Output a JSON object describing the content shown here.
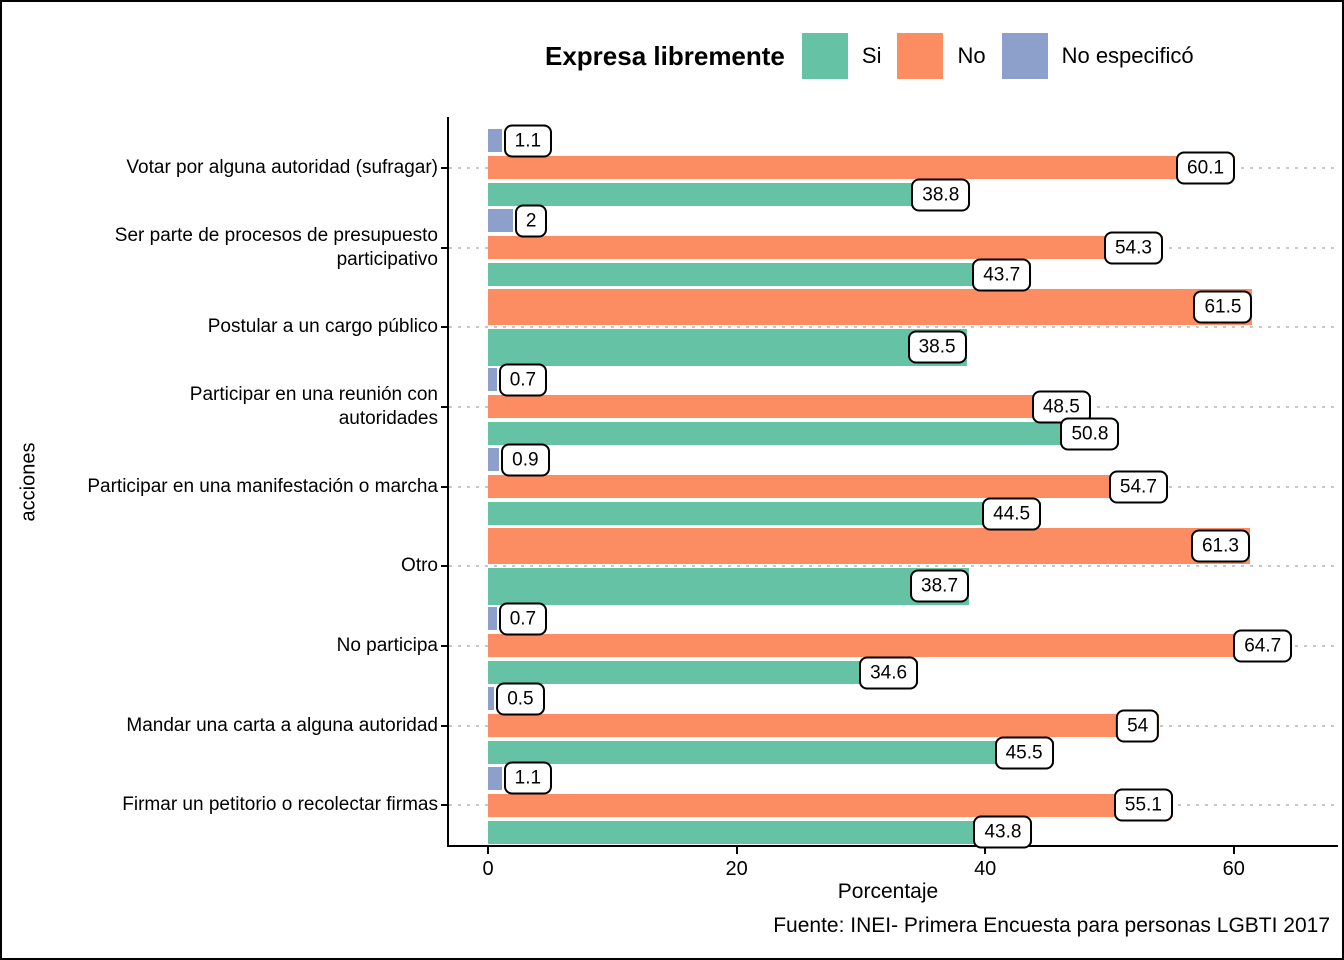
{
  "legend": {
    "title": "Expresa libremente",
    "items": [
      {
        "label": "Si",
        "color": "#66C2A5",
        "icon": "legend-swatch-si"
      },
      {
        "label": "No",
        "color": "#FC8D62",
        "icon": "legend-swatch-no"
      },
      {
        "label": "No especificó",
        "color": "#8DA0CB",
        "icon": "legend-swatch-no-especifico"
      }
    ]
  },
  "axes": {
    "x_title": "Porcentaje",
    "y_title": "acciones",
    "x_ticks": [
      0,
      20,
      40,
      60
    ]
  },
  "caption": "Fuente: INEI- Primera Encuesta para personas LGBTI 2017",
  "chart_data": {
    "type": "bar",
    "orientation": "horizontal",
    "title": "",
    "xlabel": "Porcentaje",
    "ylabel": "acciones",
    "xlim": [
      0,
      66
    ],
    "x_ticks": [
      0,
      20,
      40,
      60
    ],
    "grid": "dotted horizontal gridlines at each category center",
    "legend_position": "top",
    "legend_title": "Expresa libremente",
    "bar_label_style": "white rounded box with black border at bar end",
    "categories": [
      "Votar por alguna autoridad (sufragar)",
      "Ser parte de procesos de presupuesto participativo",
      "Postular a un cargo público",
      "Participar en una reunión con autoridades",
      "Participar en una manifestación o marcha",
      "Otro",
      "No participa",
      "Mandar una carta a alguna autoridad",
      "Firmar un petitorio o recolectar firmas"
    ],
    "category_label_lines": [
      [
        "Votar por alguna autoridad (sufragar)"
      ],
      [
        "Ser parte de procesos de presupuesto",
        "participativo"
      ],
      [
        "Postular a un cargo público"
      ],
      [
        "Participar en una reunión con",
        "autoridades"
      ],
      [
        "Participar en una manifestación o marcha"
      ],
      [
        "Otro"
      ],
      [
        "No participa"
      ],
      [
        "Mandar una carta a alguna autoridad"
      ],
      [
        "Firmar un petitorio o recolectar firmas"
      ]
    ],
    "series": [
      {
        "name": "No especificó",
        "color": "#8DA0CB",
        "values": [
          1.1,
          2,
          null,
          0.7,
          0.9,
          null,
          0.7,
          0.5,
          1.1
        ]
      },
      {
        "name": "No",
        "color": "#FC8D62",
        "values": [
          60.1,
          54.3,
          61.5,
          48.5,
          54.7,
          61.3,
          64.7,
          54,
          55.1
        ]
      },
      {
        "name": "Si",
        "color": "#66C2A5",
        "values": [
          38.8,
          43.7,
          38.5,
          50.8,
          44.5,
          38.7,
          34.6,
          45.5,
          43.8
        ]
      }
    ]
  }
}
